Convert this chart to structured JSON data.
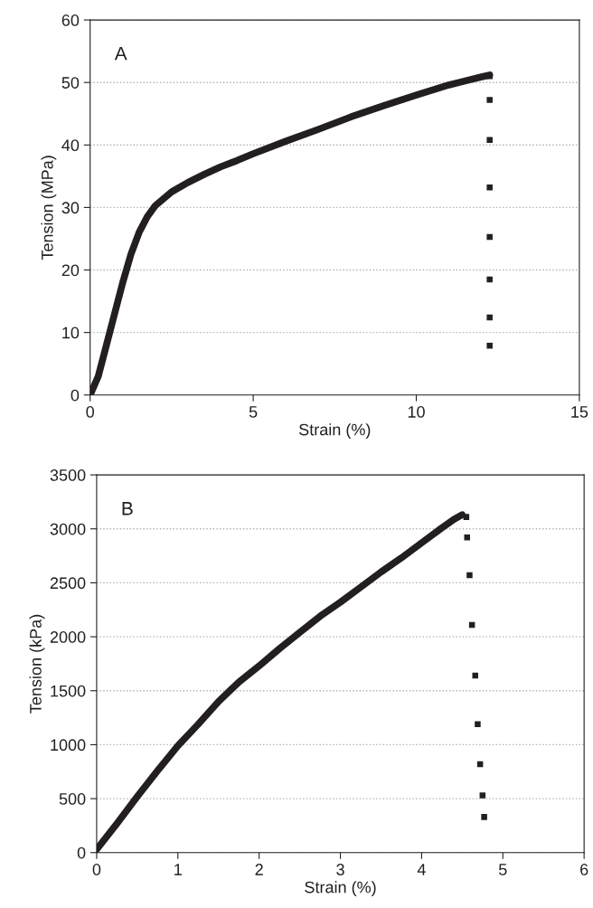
{
  "chart_data": [
    {
      "type": "scatter",
      "xlabel": "Strain (%)",
      "ylabel": "Tension (MPa)",
      "annotations": [
        "A"
      ],
      "xlim": [
        0,
        15
      ],
      "xticks": [
        0,
        5,
        10,
        15
      ],
      "ylim": [
        0,
        60
      ],
      "yticks": [
        0,
        10,
        20,
        30,
        40,
        50,
        60
      ],
      "grid": "y",
      "legend": false,
      "series": [
        {
          "type": "line",
          "color": "#231f20",
          "line_style": "solid",
          "x": [
            0,
            0.25,
            0.5,
            0.75,
            1.0,
            1.25,
            1.5,
            1.75,
            2.0,
            2.5,
            3,
            3.5,
            4,
            4.5,
            5,
            6,
            7,
            8,
            9,
            10,
            11,
            12,
            12.25
          ],
          "values": [
            0,
            3,
            8,
            13,
            18,
            22.5,
            26,
            28.5,
            30.3,
            32.5,
            34,
            35.3,
            36.5,
            37.5,
            38.6,
            40.6,
            42.5,
            44.5,
            46.3,
            48,
            49.6,
            50.9,
            51.2
          ]
        },
        {
          "color": "#231f20",
          "marker": "square",
          "x": [
            12.25,
            12.25,
            12.25,
            12.25,
            12.25,
            12.25,
            12.25,
            12.25
          ],
          "values": [
            51,
            47.2,
            40.8,
            33.2,
            25.3,
            18.5,
            12.4,
            7.9
          ]
        }
      ]
    },
    {
      "type": "scatter",
      "xlabel": "Strain (%)",
      "ylabel": "Tension (kPa)",
      "annotations": [
        "B"
      ],
      "xlim": [
        0,
        6
      ],
      "xticks": [
        0,
        1,
        2,
        3,
        4,
        5,
        6
      ],
      "ylim": [
        0,
        3500
      ],
      "yticks": [
        0,
        500,
        1000,
        1500,
        2000,
        2500,
        3000,
        3500
      ],
      "grid": "y",
      "legend": false,
      "series": [
        {
          "type": "line",
          "color": "#231f20",
          "line_style": "solid",
          "x": [
            0,
            0.25,
            0.5,
            0.75,
            1.0,
            1.25,
            1.5,
            1.75,
            2,
            2.25,
            2.5,
            2.75,
            3,
            3.25,
            3.5,
            3.75,
            4,
            4.25,
            4.4,
            4.5
          ],
          "values": [
            30,
            270,
            520,
            760,
            990,
            1190,
            1400,
            1580,
            1730,
            1890,
            2040,
            2190,
            2320,
            2460,
            2600,
            2730,
            2870,
            3010,
            3090,
            3130
          ]
        },
        {
          "color": "#231f20",
          "marker": "square",
          "x": [
            4.55,
            4.56,
            4.59,
            4.62,
            4.66,
            4.69,
            4.72,
            4.75,
            4.77
          ],
          "values": [
            3110,
            2920,
            2570,
            2110,
            1640,
            1190,
            820,
            530,
            330
          ]
        }
      ]
    }
  ]
}
